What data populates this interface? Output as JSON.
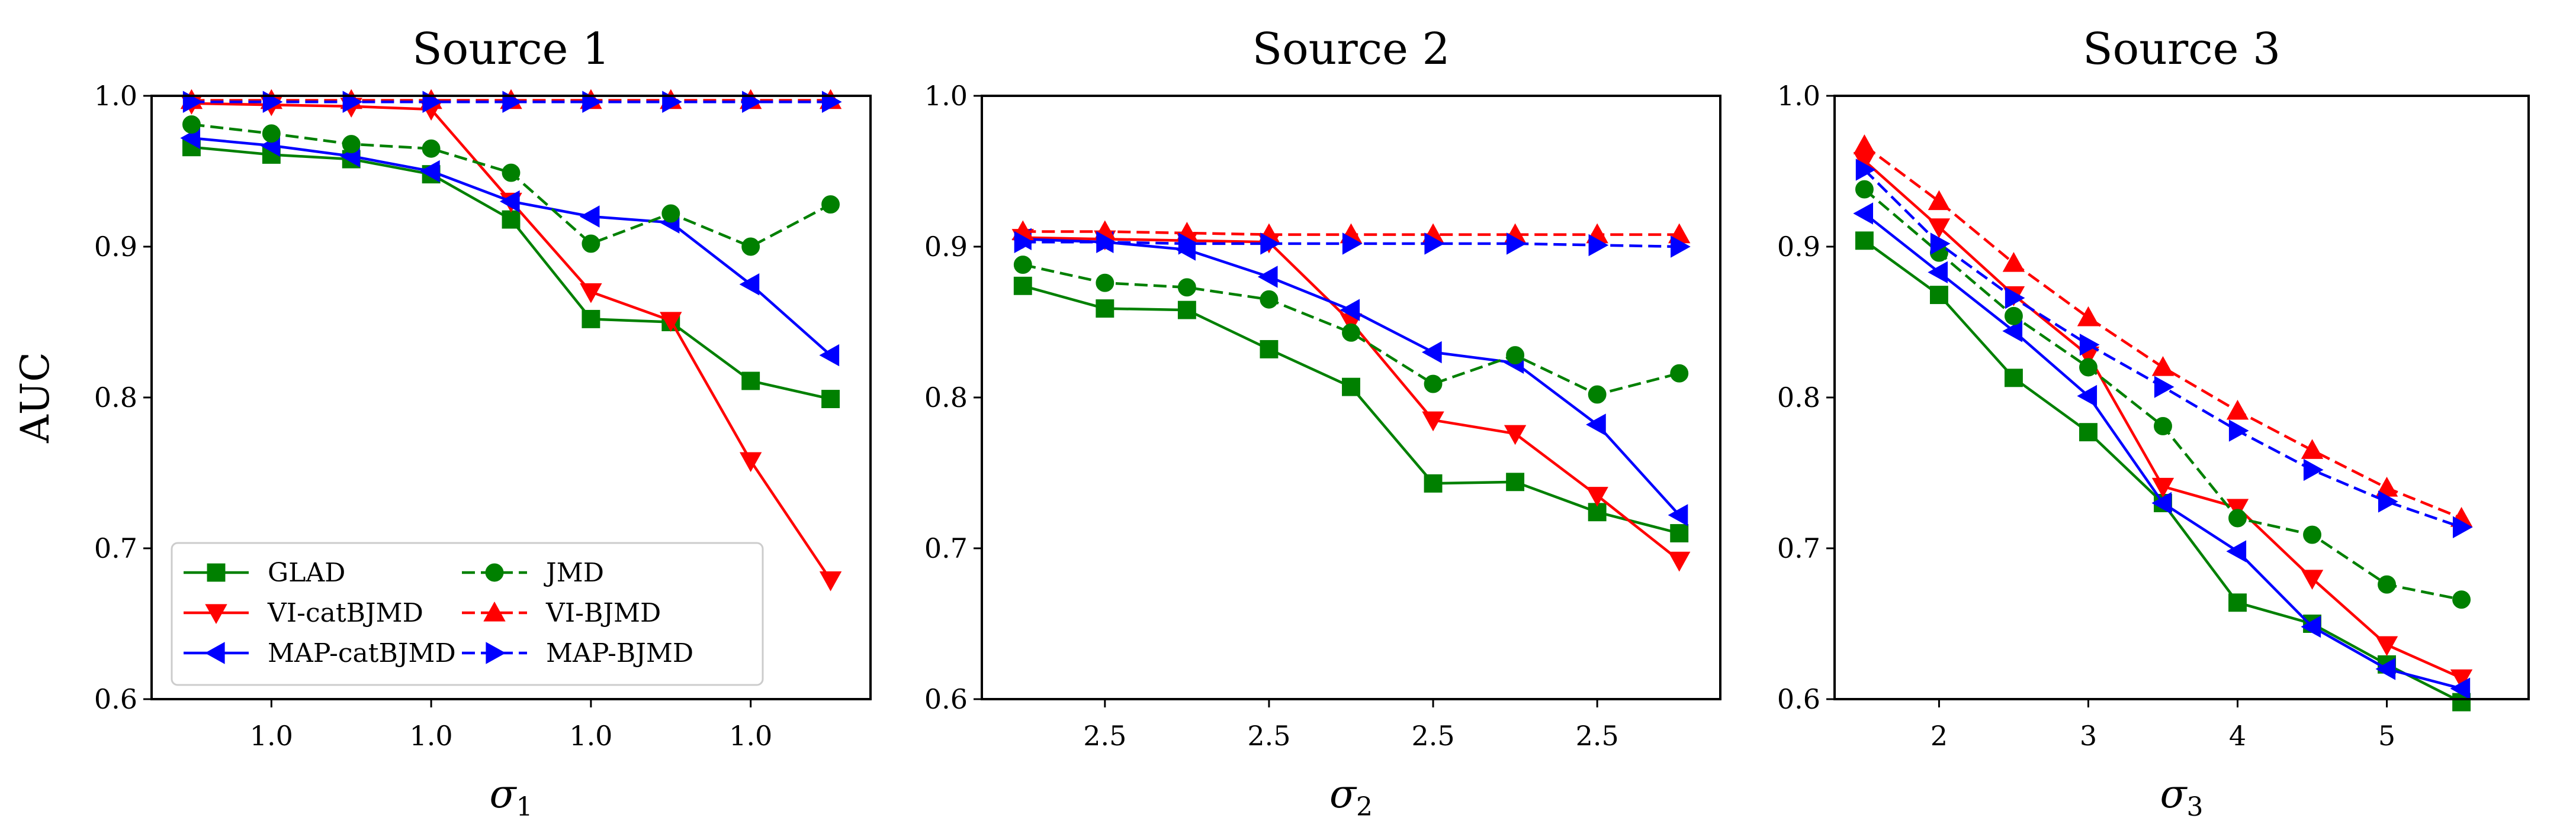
{
  "colors": {
    "GLAD": "#008000",
    "VI-catBJMD": "#ff0000",
    "MAP-catBJMD": "#0000ff",
    "JMD": "#008000",
    "VI-BJMD": "#ff0000",
    "MAP-BJMD": "#0000ff"
  },
  "chart_data": [
    {
      "type": "line",
      "title": "Source 1",
      "xlabel": "σ",
      "xlabel_sub": "1",
      "ylabel": "AUC",
      "ylim": [
        0.6,
        1.0
      ],
      "xlim": [
        0.5,
        9.5
      ],
      "yticks": [
        "0.6",
        "0.7",
        "0.8",
        "0.9",
        "1.0"
      ],
      "xticks": [
        {
          "x": 2,
          "label": "1.0"
        },
        {
          "x": 4,
          "label": "1.0"
        },
        {
          "x": 6,
          "label": "1.0"
        },
        {
          "x": 8,
          "label": "1.0"
        }
      ],
      "x": [
        1,
        2,
        3,
        4,
        5,
        6,
        7,
        8,
        9
      ],
      "legend": "lower-left",
      "series": [
        {
          "name": "GLAD",
          "marker": "square",
          "dash": "solid",
          "values": [
            0.966,
            0.961,
            0.958,
            0.948,
            0.918,
            0.852,
            0.85,
            0.811,
            0.799
          ]
        },
        {
          "name": "VI-catBJMD",
          "marker": "tri-down",
          "dash": "solid",
          "values": [
            0.995,
            0.994,
            0.993,
            0.991,
            0.93,
            0.87,
            0.851,
            0.758,
            0.679
          ]
        },
        {
          "name": "MAP-catBJMD",
          "marker": "tri-left",
          "dash": "solid",
          "values": [
            0.972,
            0.967,
            0.96,
            0.95,
            0.93,
            0.92,
            0.916,
            0.875,
            0.828
          ]
        },
        {
          "name": "JMD",
          "marker": "circle",
          "dash": "dashed",
          "values": [
            0.981,
            0.975,
            0.968,
            0.965,
            0.949,
            0.902,
            0.922,
            0.9,
            0.928
          ]
        },
        {
          "name": "VI-BJMD",
          "marker": "tri-up",
          "dash": "dashed",
          "values": [
            0.997,
            0.997,
            0.997,
            0.997,
            0.997,
            0.997,
            0.997,
            0.997,
            0.997
          ]
        },
        {
          "name": "MAP-BJMD",
          "marker": "tri-right",
          "dash": "dashed",
          "values": [
            0.996,
            0.996,
            0.996,
            0.996,
            0.996,
            0.996,
            0.996,
            0.996,
            0.996
          ]
        }
      ]
    },
    {
      "type": "line",
      "title": "Source 2",
      "xlabel": "σ",
      "xlabel_sub": "2",
      "ylabel": "",
      "ylim": [
        0.6,
        1.0
      ],
      "xlim": [
        0.5,
        9.5
      ],
      "yticks": [
        "0.6",
        "0.7",
        "0.8",
        "0.9",
        "1.0"
      ],
      "xticks": [
        {
          "x": 2,
          "label": "2.5"
        },
        {
          "x": 4,
          "label": "2.5"
        },
        {
          "x": 6,
          "label": "2.5"
        },
        {
          "x": 8,
          "label": "2.5"
        }
      ],
      "x": [
        1,
        2,
        3,
        4,
        5,
        6,
        7,
        8,
        9
      ],
      "series": [
        {
          "name": "GLAD",
          "marker": "square",
          "dash": "solid",
          "values": [
            0.874,
            0.859,
            0.858,
            0.832,
            0.807,
            0.743,
            0.744,
            0.724,
            0.71
          ]
        },
        {
          "name": "VI-catBJMD",
          "marker": "tri-down",
          "dash": "solid",
          "values": [
            0.906,
            0.905,
            0.904,
            0.903,
            0.85,
            0.785,
            0.776,
            0.735,
            0.692
          ]
        },
        {
          "name": "MAP-catBJMD",
          "marker": "tri-left",
          "dash": "solid",
          "values": [
            0.905,
            0.903,
            0.898,
            0.88,
            0.858,
            0.83,
            0.823,
            0.782,
            0.722
          ]
        },
        {
          "name": "JMD",
          "marker": "circle",
          "dash": "dashed",
          "values": [
            0.888,
            0.876,
            0.873,
            0.865,
            0.843,
            0.809,
            0.828,
            0.802,
            0.816
          ]
        },
        {
          "name": "VI-BJMD",
          "marker": "tri-up",
          "dash": "dashed",
          "values": [
            0.91,
            0.91,
            0.909,
            0.908,
            0.908,
            0.908,
            0.908,
            0.908,
            0.908
          ]
        },
        {
          "name": "MAP-BJMD",
          "marker": "tri-right",
          "dash": "dashed",
          "values": [
            0.903,
            0.903,
            0.902,
            0.902,
            0.902,
            0.902,
            0.902,
            0.901,
            0.9
          ]
        }
      ]
    },
    {
      "type": "line",
      "title": "Source 3",
      "xlabel": "σ",
      "xlabel_sub": "3",
      "ylabel": "",
      "ylim": [
        0.6,
        1.0
      ],
      "xlim": [
        1.3,
        5.95
      ],
      "yticks": [
        "0.6",
        "0.7",
        "0.8",
        "0.9",
        "1.0"
      ],
      "xticks": [
        {
          "x": 2,
          "label": "2"
        },
        {
          "x": 3,
          "label": "3"
        },
        {
          "x": 4,
          "label": "4"
        },
        {
          "x": 5,
          "label": "5"
        }
      ],
      "x": [
        1.5,
        2.0,
        2.5,
        3.0,
        3.5,
        4.0,
        4.5,
        5.0,
        5.5
      ],
      "series": [
        {
          "name": "GLAD",
          "marker": "square",
          "dash": "solid",
          "values": [
            0.904,
            0.868,
            0.813,
            0.777,
            0.73,
            0.664,
            0.65,
            0.623,
            0.598
          ]
        },
        {
          "name": "VI-catBJMD",
          "marker": "tri-down",
          "dash": "solid",
          "values": [
            0.957,
            0.913,
            0.868,
            0.828,
            0.741,
            0.727,
            0.68,
            0.636,
            0.614
          ]
        },
        {
          "name": "MAP-catBJMD",
          "marker": "tri-left",
          "dash": "solid",
          "values": [
            0.922,
            0.883,
            0.844,
            0.801,
            0.73,
            0.698,
            0.648,
            0.62,
            0.607
          ]
        },
        {
          "name": "JMD",
          "marker": "circle",
          "dash": "dashed",
          "values": [
            0.938,
            0.896,
            0.854,
            0.82,
            0.781,
            0.72,
            0.709,
            0.676,
            0.666
          ]
        },
        {
          "name": "VI-BJMD",
          "marker": "tri-up",
          "dash": "dashed",
          "values": [
            0.967,
            0.93,
            0.889,
            0.853,
            0.82,
            0.791,
            0.765,
            0.74,
            0.72
          ]
        },
        {
          "name": "MAP-BJMD",
          "marker": "tri-right",
          "dash": "dashed",
          "values": [
            0.951,
            0.902,
            0.866,
            0.835,
            0.807,
            0.778,
            0.752,
            0.731,
            0.714
          ]
        }
      ]
    }
  ]
}
